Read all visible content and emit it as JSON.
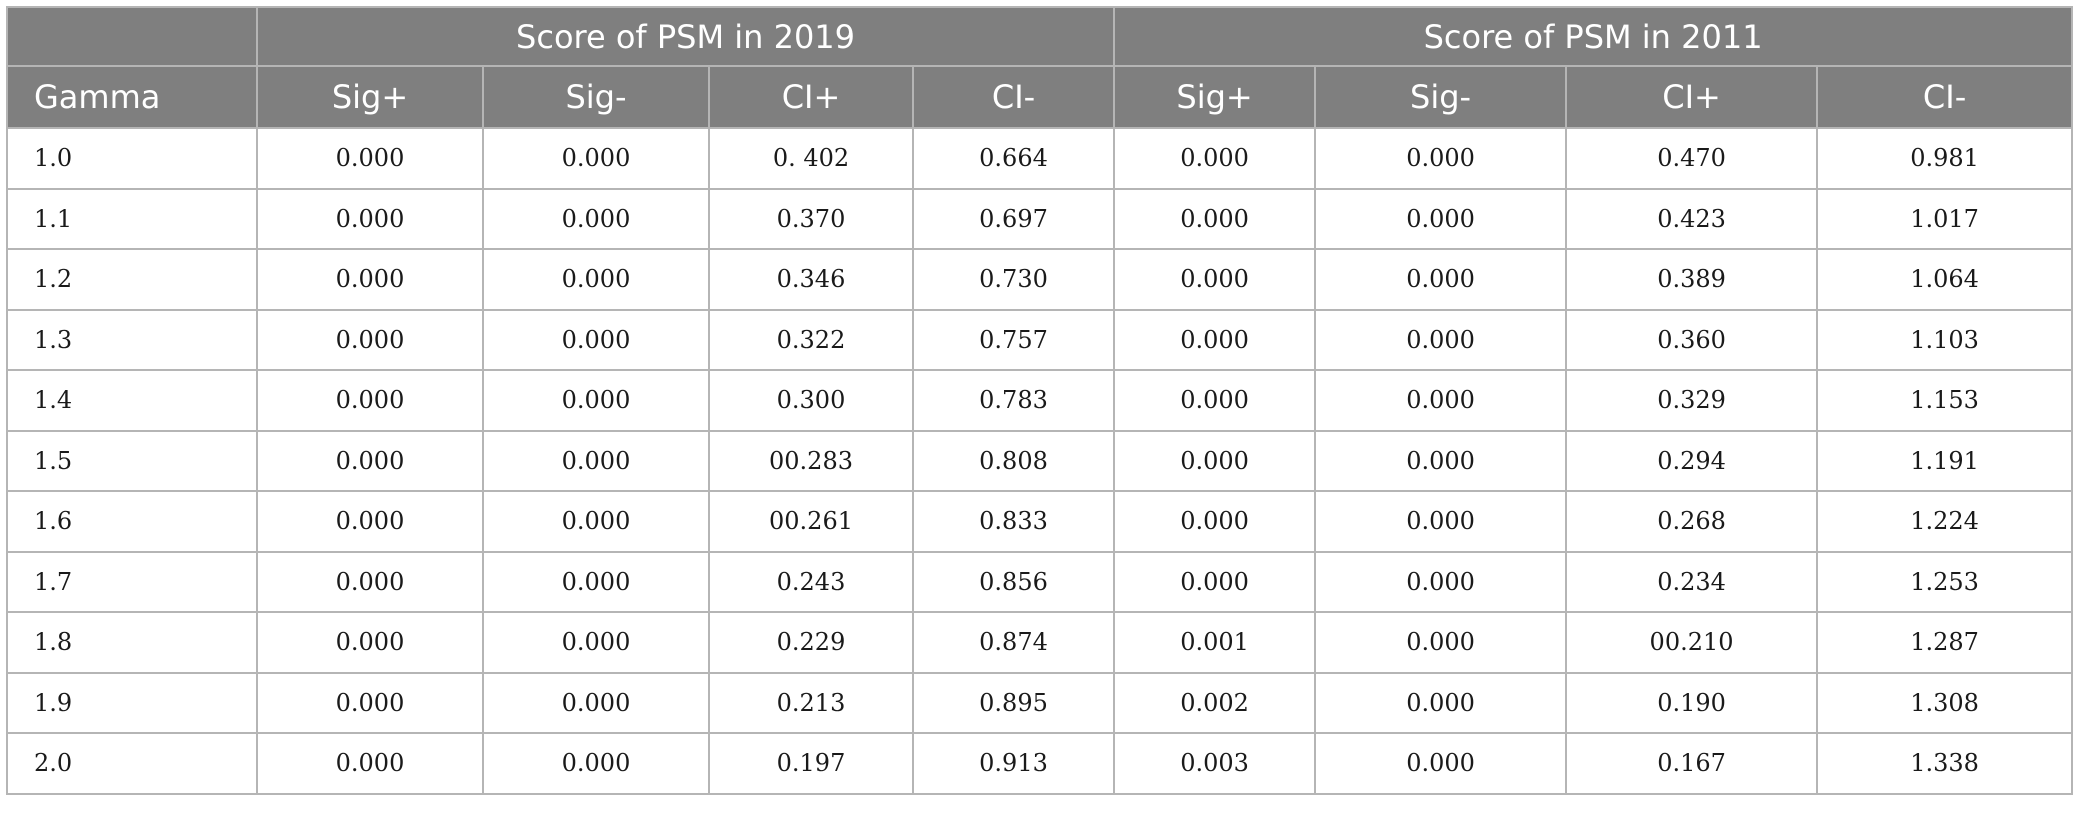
{
  "table": {
    "groups": {
      "first": "Score of PSM in 2019",
      "second": "Score of PSM in 2011"
    },
    "columns": [
      "Gamma",
      "Sig+",
      "Sig-",
      "CI+",
      "CI-",
      "Sig+",
      "Sig-",
      "CI+",
      "CI-"
    ],
    "rows": [
      [
        "1.0",
        "0.000",
        "0.000",
        "0. 402",
        "0.664",
        "0.000",
        "0.000",
        "0.470",
        "0.981"
      ],
      [
        "1.1",
        "0.000",
        "0.000",
        "0.370",
        "0.697",
        "0.000",
        "0.000",
        "0.423",
        "1.017"
      ],
      [
        "1.2",
        "0.000",
        "0.000",
        "0.346",
        "0.730",
        "0.000",
        "0.000",
        "0.389",
        "1.064"
      ],
      [
        "1.3",
        "0.000",
        "0.000",
        "0.322",
        "0.757",
        "0.000",
        "0.000",
        "0.360",
        "1.103"
      ],
      [
        "1.4",
        "0.000",
        "0.000",
        "0.300",
        "0.783",
        "0.000",
        "0.000",
        "0.329",
        "1.153"
      ],
      [
        "1.5",
        "0.000",
        "0.000",
        "00.283",
        "0.808",
        "0.000",
        "0.000",
        "0.294",
        "1.191"
      ],
      [
        "1.6",
        "0.000",
        "0.000",
        "00.261",
        "0.833",
        "0.000",
        "0.000",
        "0.268",
        "1.224"
      ],
      [
        "1.7",
        "0.000",
        "0.000",
        "0.243",
        "0.856",
        "0.000",
        "0.000",
        "0.234",
        "1.253"
      ],
      [
        "1.8",
        "0.000",
        "0.000",
        "0.229",
        "0.874",
        "0.001",
        "0.000",
        "00.210",
        "1.287"
      ],
      [
        "1.9",
        "0.000",
        "0.000",
        "0.213",
        "0.895",
        "0.002",
        "0.000",
        "0.190",
        "1.308"
      ],
      [
        "2.0",
        "0.000",
        "0.000",
        "0.197",
        "0.913",
        "0.003",
        "0.000",
        "0.167",
        "1.338"
      ]
    ]
  },
  "colors": {
    "header_bg": "#7f7f7f",
    "header_text": "#ffffff",
    "border": "#b5b5b5"
  }
}
